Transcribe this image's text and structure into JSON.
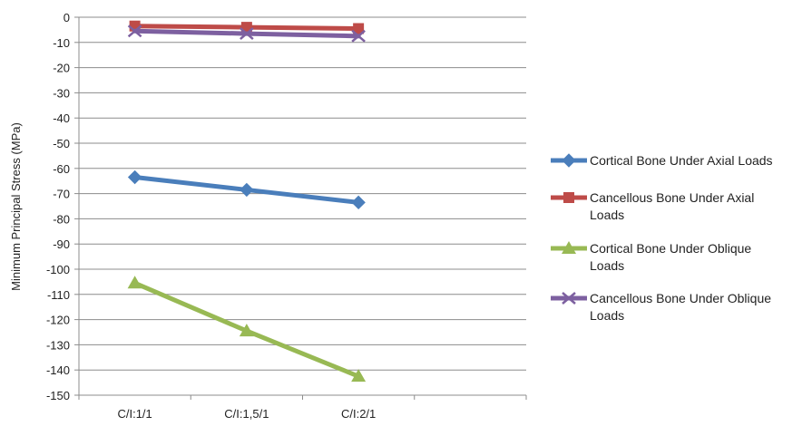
{
  "chart_data": {
    "type": "line",
    "title": "",
    "xlabel": "",
    "ylabel": "Minimum Principal Stress (MPa)",
    "categories": [
      "C/I:1/1",
      "C/I:1,5/1",
      "C/I:2/1"
    ],
    "ylim": [
      -150,
      0
    ],
    "ytick_step": 10,
    "grid": true,
    "legend_position": "right",
    "series": [
      {
        "name": "Cortical Bone Under Axial Loads",
        "values": [
          -63.5,
          -68.5,
          -73.5
        ],
        "color": "#4a7ebb",
        "marker": "diamond"
      },
      {
        "name": "Cancellous Bone Under Axial Loads",
        "values": [
          -3.5,
          -4.0,
          -4.5
        ],
        "color": "#be4b48",
        "marker": "square"
      },
      {
        "name": "Cortical Bone Under Oblique Loads",
        "values": [
          -105.5,
          -124.5,
          -142.5
        ],
        "color": "#98b954",
        "marker": "triangle"
      },
      {
        "name": "Cancellous Bone Under Oblique Loads",
        "values": [
          -5.5,
          -6.5,
          -7.5
        ],
        "color": "#7d60a0",
        "marker": "x"
      }
    ]
  }
}
